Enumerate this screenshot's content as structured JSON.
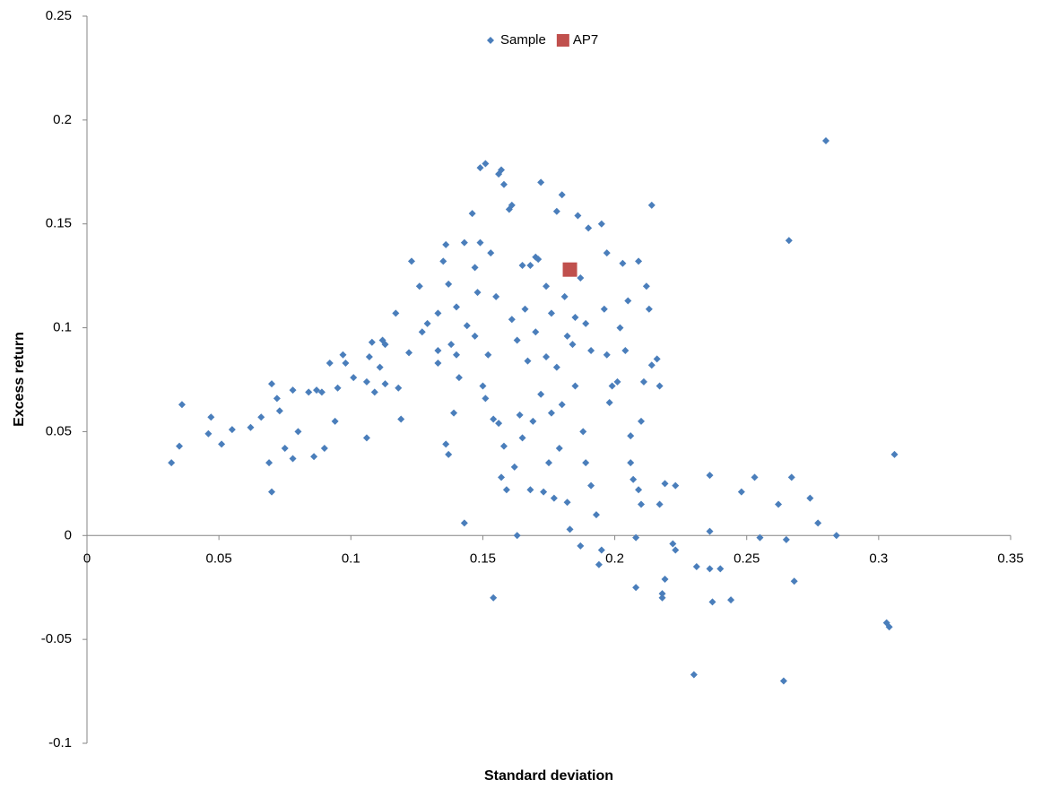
{
  "chart_data": {
    "type": "scatter",
    "xlabel": "Standard deviation",
    "ylabel": "Excess return",
    "xlim": [
      0,
      0.35
    ],
    "ylim": [
      -0.1,
      0.25
    ],
    "xticks": [
      0,
      0.05,
      0.1,
      0.15,
      0.2,
      0.25,
      0.3,
      0.35
    ],
    "yticks": [
      -0.1,
      -0.05,
      0,
      0.05,
      0.1,
      0.15,
      0.2,
      0.25
    ],
    "grid": false,
    "legend": "top",
    "series": [
      {
        "name": "Sample",
        "color": "#4a7ebb",
        "marker": "diamond",
        "x": [
          0.032,
          0.035,
          0.036,
          0.047,
          0.046,
          0.051,
          0.055,
          0.062,
          0.066,
          0.069,
          0.07,
          0.07,
          0.072,
          0.073,
          0.075,
          0.078,
          0.078,
          0.08,
          0.084,
          0.086,
          0.087,
          0.089,
          0.09,
          0.092,
          0.094,
          0.095,
          0.097,
          0.098,
          0.101,
          0.106,
          0.106,
          0.107,
          0.108,
          0.109,
          0.111,
          0.112,
          0.113,
          0.113,
          0.117,
          0.118,
          0.119,
          0.122,
          0.123,
          0.126,
          0.127,
          0.129,
          0.133,
          0.133,
          0.133,
          0.135,
          0.136,
          0.136,
          0.137,
          0.137,
          0.138,
          0.139,
          0.14,
          0.14,
          0.141,
          0.143,
          0.143,
          0.144,
          0.146,
          0.147,
          0.147,
          0.148,
          0.149,
          0.149,
          0.15,
          0.151,
          0.151,
          0.152,
          0.153,
          0.154,
          0.154,
          0.155,
          0.156,
          0.156,
          0.157,
          0.157,
          0.158,
          0.158,
          0.159,
          0.16,
          0.161,
          0.161,
          0.162,
          0.163,
          0.163,
          0.164,
          0.165,
          0.165,
          0.166,
          0.167,
          0.168,
          0.168,
          0.169,
          0.17,
          0.17,
          0.171,
          0.172,
          0.172,
          0.173,
          0.174,
          0.174,
          0.175,
          0.176,
          0.176,
          0.177,
          0.178,
          0.178,
          0.179,
          0.18,
          0.18,
          0.181,
          0.182,
          0.182,
          0.183,
          0.184,
          0.185,
          0.185,
          0.186,
          0.187,
          0.187,
          0.188,
          0.189,
          0.189,
          0.19,
          0.191,
          0.191,
          0.193,
          0.194,
          0.195,
          0.195,
          0.196,
          0.197,
          0.197,
          0.198,
          0.199,
          0.201,
          0.202,
          0.203,
          0.204,
          0.205,
          0.206,
          0.206,
          0.207,
          0.208,
          0.208,
          0.209,
          0.209,
          0.21,
          0.21,
          0.211,
          0.212,
          0.213,
          0.214,
          0.214,
          0.216,
          0.217,
          0.217,
          0.218,
          0.218,
          0.219,
          0.219,
          0.222,
          0.223,
          0.223,
          0.23,
          0.231,
          0.236,
          0.236,
          0.236,
          0.237,
          0.24,
          0.244,
          0.248,
          0.253,
          0.255,
          0.262,
          0.264,
          0.265,
          0.266,
          0.267,
          0.268,
          0.274,
          0.277,
          0.28,
          0.284,
          0.303,
          0.304,
          0.306
        ],
        "values": [
          0.035,
          0.043,
          0.063,
          0.057,
          0.049,
          0.044,
          0.051,
          0.052,
          0.057,
          0.035,
          0.021,
          0.073,
          0.066,
          0.06,
          0.042,
          0.037,
          0.07,
          0.05,
          0.069,
          0.038,
          0.07,
          0.069,
          0.042,
          0.083,
          0.055,
          0.071,
          0.087,
          0.083,
          0.076,
          0.047,
          0.074,
          0.086,
          0.093,
          0.069,
          0.081,
          0.094,
          0.092,
          0.073,
          0.107,
          0.071,
          0.056,
          0.088,
          0.132,
          0.12,
          0.098,
          0.102,
          0.089,
          0.107,
          0.083,
          0.132,
          0.14,
          0.044,
          0.039,
          0.121,
          0.092,
          0.059,
          0.11,
          0.087,
          0.076,
          0.141,
          0.006,
          0.101,
          0.155,
          0.129,
          0.096,
          0.117,
          0.141,
          0.177,
          0.072,
          0.179,
          0.066,
          0.087,
          0.136,
          -0.03,
          0.056,
          0.115,
          0.174,
          0.054,
          0.028,
          0.176,
          0.169,
          0.043,
          0.022,
          0.157,
          0.104,
          0.159,
          0.033,
          0.0,
          0.094,
          0.058,
          0.13,
          0.047,
          0.109,
          0.084,
          0.022,
          0.13,
          0.055,
          0.134,
          0.098,
          0.133,
          0.17,
          0.068,
          0.021,
          0.12,
          0.086,
          0.035,
          0.059,
          0.107,
          0.018,
          0.156,
          0.081,
          0.042,
          0.164,
          0.063,
          0.115,
          0.096,
          0.016,
          0.003,
          0.092,
          0.072,
          0.105,
          0.154,
          0.124,
          -0.005,
          0.05,
          0.102,
          0.035,
          0.148,
          0.024,
          0.089,
          0.01,
          -0.014,
          -0.007,
          0.15,
          0.109,
          0.136,
          0.087,
          0.064,
          0.072,
          0.074,
          0.1,
          0.131,
          0.089,
          0.113,
          0.048,
          0.035,
          0.027,
          -0.025,
          -0.001,
          0.022,
          0.132,
          0.015,
          0.055,
          0.074,
          0.12,
          0.109,
          0.159,
          0.082,
          0.085,
          0.015,
          0.072,
          -0.03,
          -0.028,
          0.025,
          -0.021,
          -0.004,
          0.024,
          -0.007,
          -0.067,
          -0.015,
          0.002,
          0.029,
          -0.016,
          -0.032,
          -0.016,
          -0.031,
          0.021,
          0.028,
          -0.001,
          0.015,
          -0.07,
          -0.002,
          0.142,
          0.028,
          -0.022,
          0.018,
          0.006,
          0.19,
          0.0,
          -0.042,
          -0.044,
          0.039
        ]
      },
      {
        "name": "AP7",
        "color": "#c0504d",
        "marker": "square",
        "x": [
          0.183
        ],
        "values": [
          0.128
        ]
      }
    ]
  }
}
